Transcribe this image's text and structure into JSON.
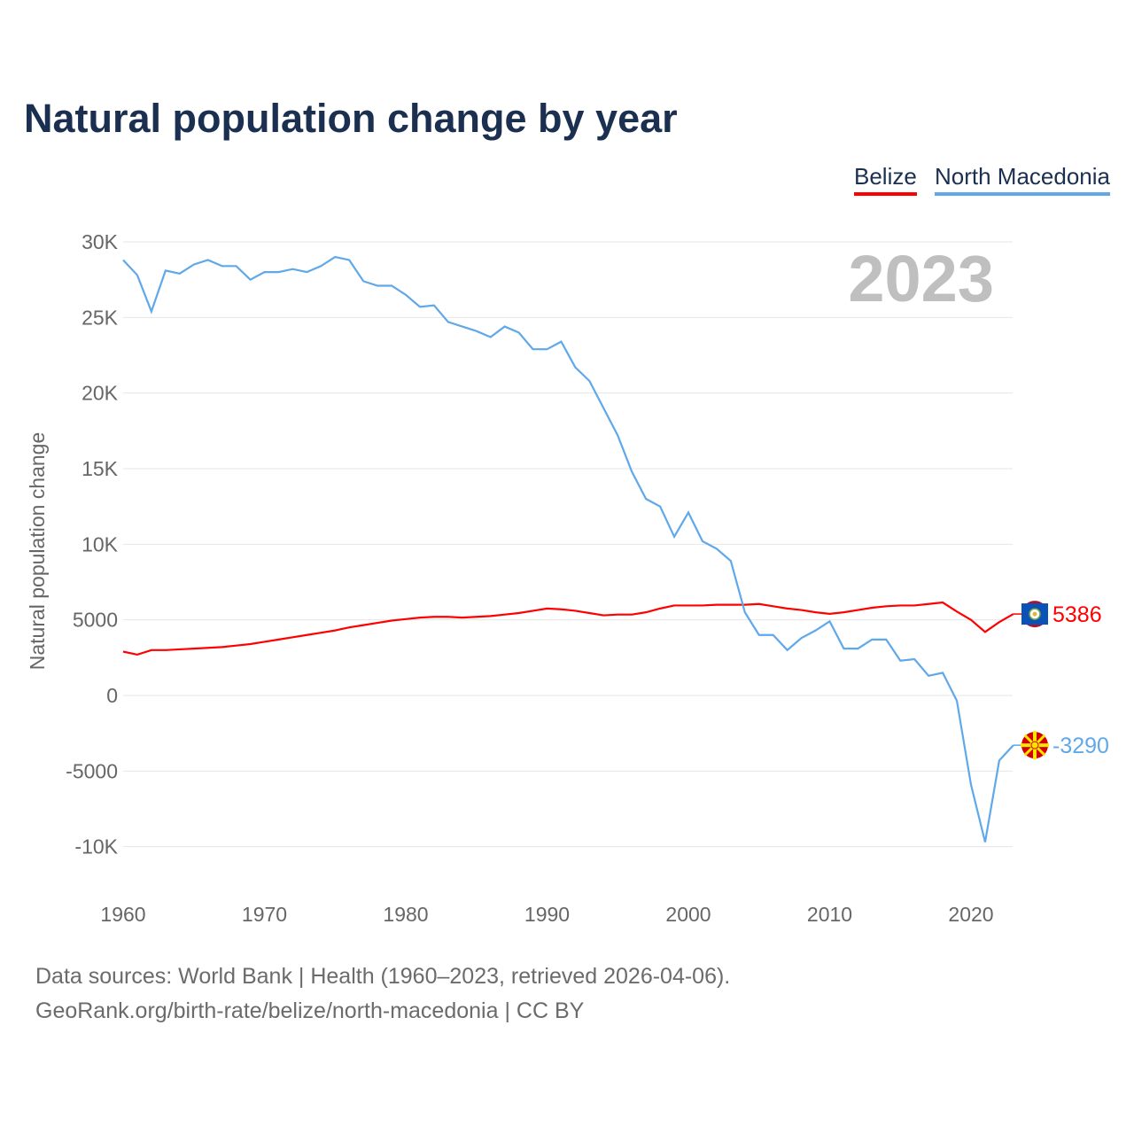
{
  "chart_data": {
    "type": "line",
    "title": "Natural population change by year",
    "xlabel": "",
    "ylabel": "Natural population change",
    "xlim": [
      1960,
      2023
    ],
    "ylim": [
      -11000,
      30000
    ],
    "yticks": [
      30000,
      25000,
      20000,
      15000,
      10000,
      5000,
      0,
      -5000,
      -10000
    ],
    "ytick_labels": [
      "30K",
      "25K",
      "20K",
      "15K",
      "10K",
      "5000",
      "0",
      "-5000",
      "-10K"
    ],
    "xticks": [
      1960,
      1970,
      1980,
      1990,
      2000,
      2010,
      2020
    ],
    "xtick_labels": [
      "1960",
      "1970",
      "1980",
      "1990",
      "2000",
      "2010",
      "2020"
    ],
    "year_label": "2023",
    "grid": true,
    "legend_position": "top-right",
    "x_start": 1960,
    "series": [
      {
        "name": "Belize",
        "color": "#ff0000",
        "end_label": "5386",
        "flag": "belize-flag",
        "values": [
          2900,
          2700,
          3000,
          3000,
          3050,
          3100,
          3150,
          3200,
          3300,
          3400,
          3550,
          3700,
          3850,
          4000,
          4150,
          4300,
          4500,
          4650,
          4800,
          4950,
          5050,
          5150,
          5200,
          5200,
          5150,
          5200,
          5250,
          5350,
          5450,
          5600,
          5750,
          5700,
          5600,
          5450,
          5300,
          5350,
          5350,
          5500,
          5750,
          5950,
          5950,
          5950,
          6000,
          6000,
          6000,
          6050,
          5900,
          5750,
          5650,
          5500,
          5400,
          5500,
          5650,
          5800,
          5900,
          5950,
          5950,
          6050,
          6150,
          5550,
          5000,
          4200,
          4850,
          5386
        ]
      },
      {
        "name": "North Macedonia",
        "color": "#5fa8ea",
        "end_label": "-3290",
        "flag": "north-macedonia-flag",
        "values": [
          28800,
          27800,
          25400,
          28100,
          27900,
          28500,
          28800,
          28400,
          28400,
          27500,
          28000,
          28000,
          28200,
          28000,
          28400,
          29000,
          28800,
          27400,
          27100,
          27100,
          26500,
          25700,
          25800,
          24700,
          24400,
          24100,
          23700,
          24400,
          24000,
          22900,
          22900,
          23400,
          21700,
          20800,
          19000,
          17200,
          14800,
          13000,
          12500,
          10500,
          12100,
          10200,
          9700,
          8900,
          5500,
          4000,
          4000,
          3000,
          3800,
          4300,
          4900,
          3100,
          3100,
          3700,
          3700,
          2300,
          2400,
          1300,
          1500,
          -350,
          -5900,
          -9700,
          -4300,
          -3290
        ]
      }
    ]
  },
  "footer": {
    "line1": "Data sources: World Bank | Health (1960–2023, retrieved 2026-04-06).",
    "line2": "GeoRank.org/birth-rate/belize/north-macedonia | CC BY"
  }
}
